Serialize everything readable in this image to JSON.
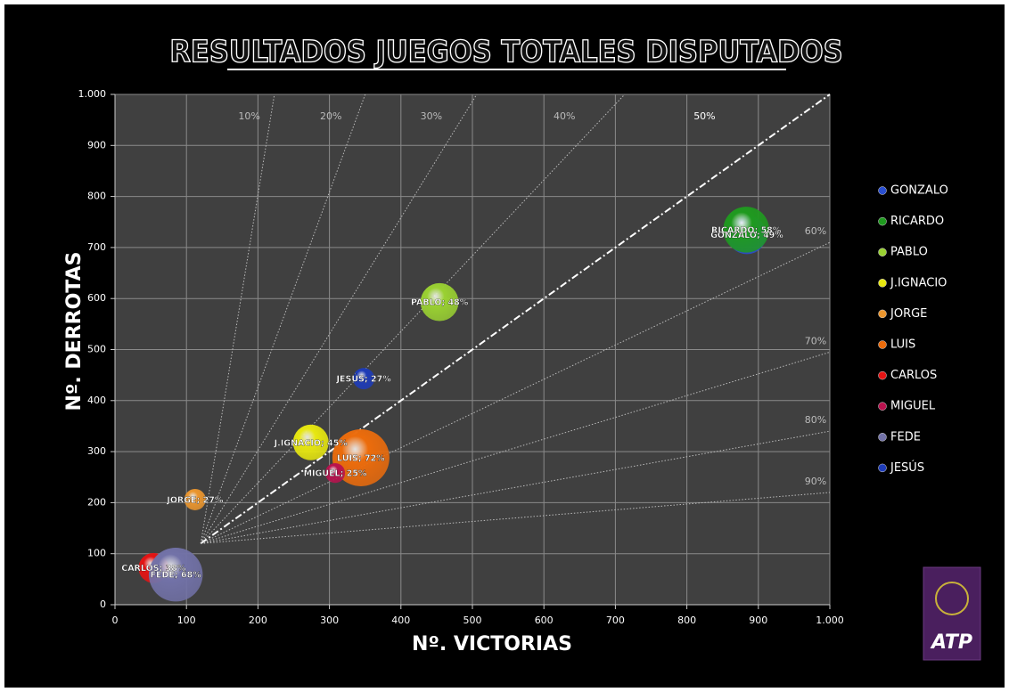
{
  "chart_data": {
    "type": "bubble",
    "title": "RESULTADOS JUEGOS TOTALES DISPUTADOS",
    "x_label": "Nº. VICTORIAS",
    "y_label": "Nº. DERROTAS",
    "xlim": [
      0,
      1000
    ],
    "ylim": [
      0,
      1000
    ],
    "xticks": [
      0,
      100,
      200,
      300,
      400,
      500,
      600,
      700,
      800,
      900,
      {
        "value": 1000,
        "label": "1.000"
      }
    ],
    "yticks": [
      0,
      100,
      200,
      300,
      400,
      500,
      600,
      700,
      800,
      900,
      {
        "value": 1000,
        "label": "1.000"
      }
    ],
    "grid": true,
    "size_represents": "width",
    "legend": "right",
    "series": [
      {
        "name": "GONZALO",
        "color": "#2a4fd0",
        "x": 884,
        "y": 725,
        "size": 49,
        "value_labels": "GONZALO; 49%"
      },
      {
        "name": "RICARDO",
        "color": "#1f9a1f",
        "x": 883,
        "y": 735,
        "size": 58,
        "value_labels": "RICARDO; 58%"
      },
      {
        "name": "PABLO",
        "color": "#9ad132",
        "x": 454,
        "y": 593,
        "size": 48,
        "value_labels": "PABLO; 48%"
      },
      {
        "name": "J.IGNACIO",
        "color": "#e8e810",
        "x": 274,
        "y": 318,
        "size": 45,
        "value_labels": "J.IGNACIO; 45%"
      },
      {
        "name": "JORGE",
        "color": "#eb962e",
        "x": 112,
        "y": 206,
        "size": 27,
        "value_labels": "JORGE; 27%"
      },
      {
        "name": "LUIS",
        "color": "#ec6c0c",
        "x": 344,
        "y": 288,
        "size": 72,
        "value_labels": "LUIS; 72%"
      },
      {
        "name": "CARLOS",
        "color": "#e41414",
        "x": 54,
        "y": 72,
        "size": 38,
        "value_labels": "CARLOS; 38%"
      },
      {
        "name": "MIGUEL",
        "color": "#b8124e",
        "x": 308,
        "y": 258,
        "size": 25,
        "value_labels": "MIGUEL; 25%"
      },
      {
        "name": "FEDE",
        "color": "#7272a8",
        "x": 85,
        "y": 59,
        "size": 68,
        "value_labels": "FEDE; 68%"
      },
      {
        "name": "JESÚS",
        "color": "#1e3cb8",
        "x": 348,
        "y": 443,
        "size": 27,
        "value_labels": "JESÚS; 27%"
      }
    ],
    "reference_lines": [
      {
        "label": "10%",
        "x": [
          120,
          223
        ],
        "y": [
          120,
          1000
        ]
      },
      {
        "label": "20%",
        "x": [
          120,
          350
        ],
        "y": [
          120,
          1000
        ]
      },
      {
        "label": "30%",
        "x": [
          120,
          506
        ],
        "y": [
          120,
          1000
        ]
      },
      {
        "label": "40%",
        "x": [
          120,
          713
        ],
        "y": [
          120,
          1000
        ]
      },
      {
        "label": "50%",
        "x": [
          120,
          1000
        ],
        "y": [
          120,
          1000
        ],
        "emphasis": true
      },
      {
        "label": "60%",
        "x": [
          120,
          1000
        ],
        "y": [
          120,
          710
        ]
      },
      {
        "label": "70%",
        "x": [
          120,
          1000
        ],
        "y": [
          120,
          495
        ]
      },
      {
        "label": "80%",
        "x": [
          120,
          1000
        ],
        "y": [
          120,
          340
        ]
      },
      {
        "label": "90%",
        "x": [
          120,
          1000
        ],
        "y": [
          120,
          220
        ]
      }
    ],
    "logo": "ATP"
  }
}
